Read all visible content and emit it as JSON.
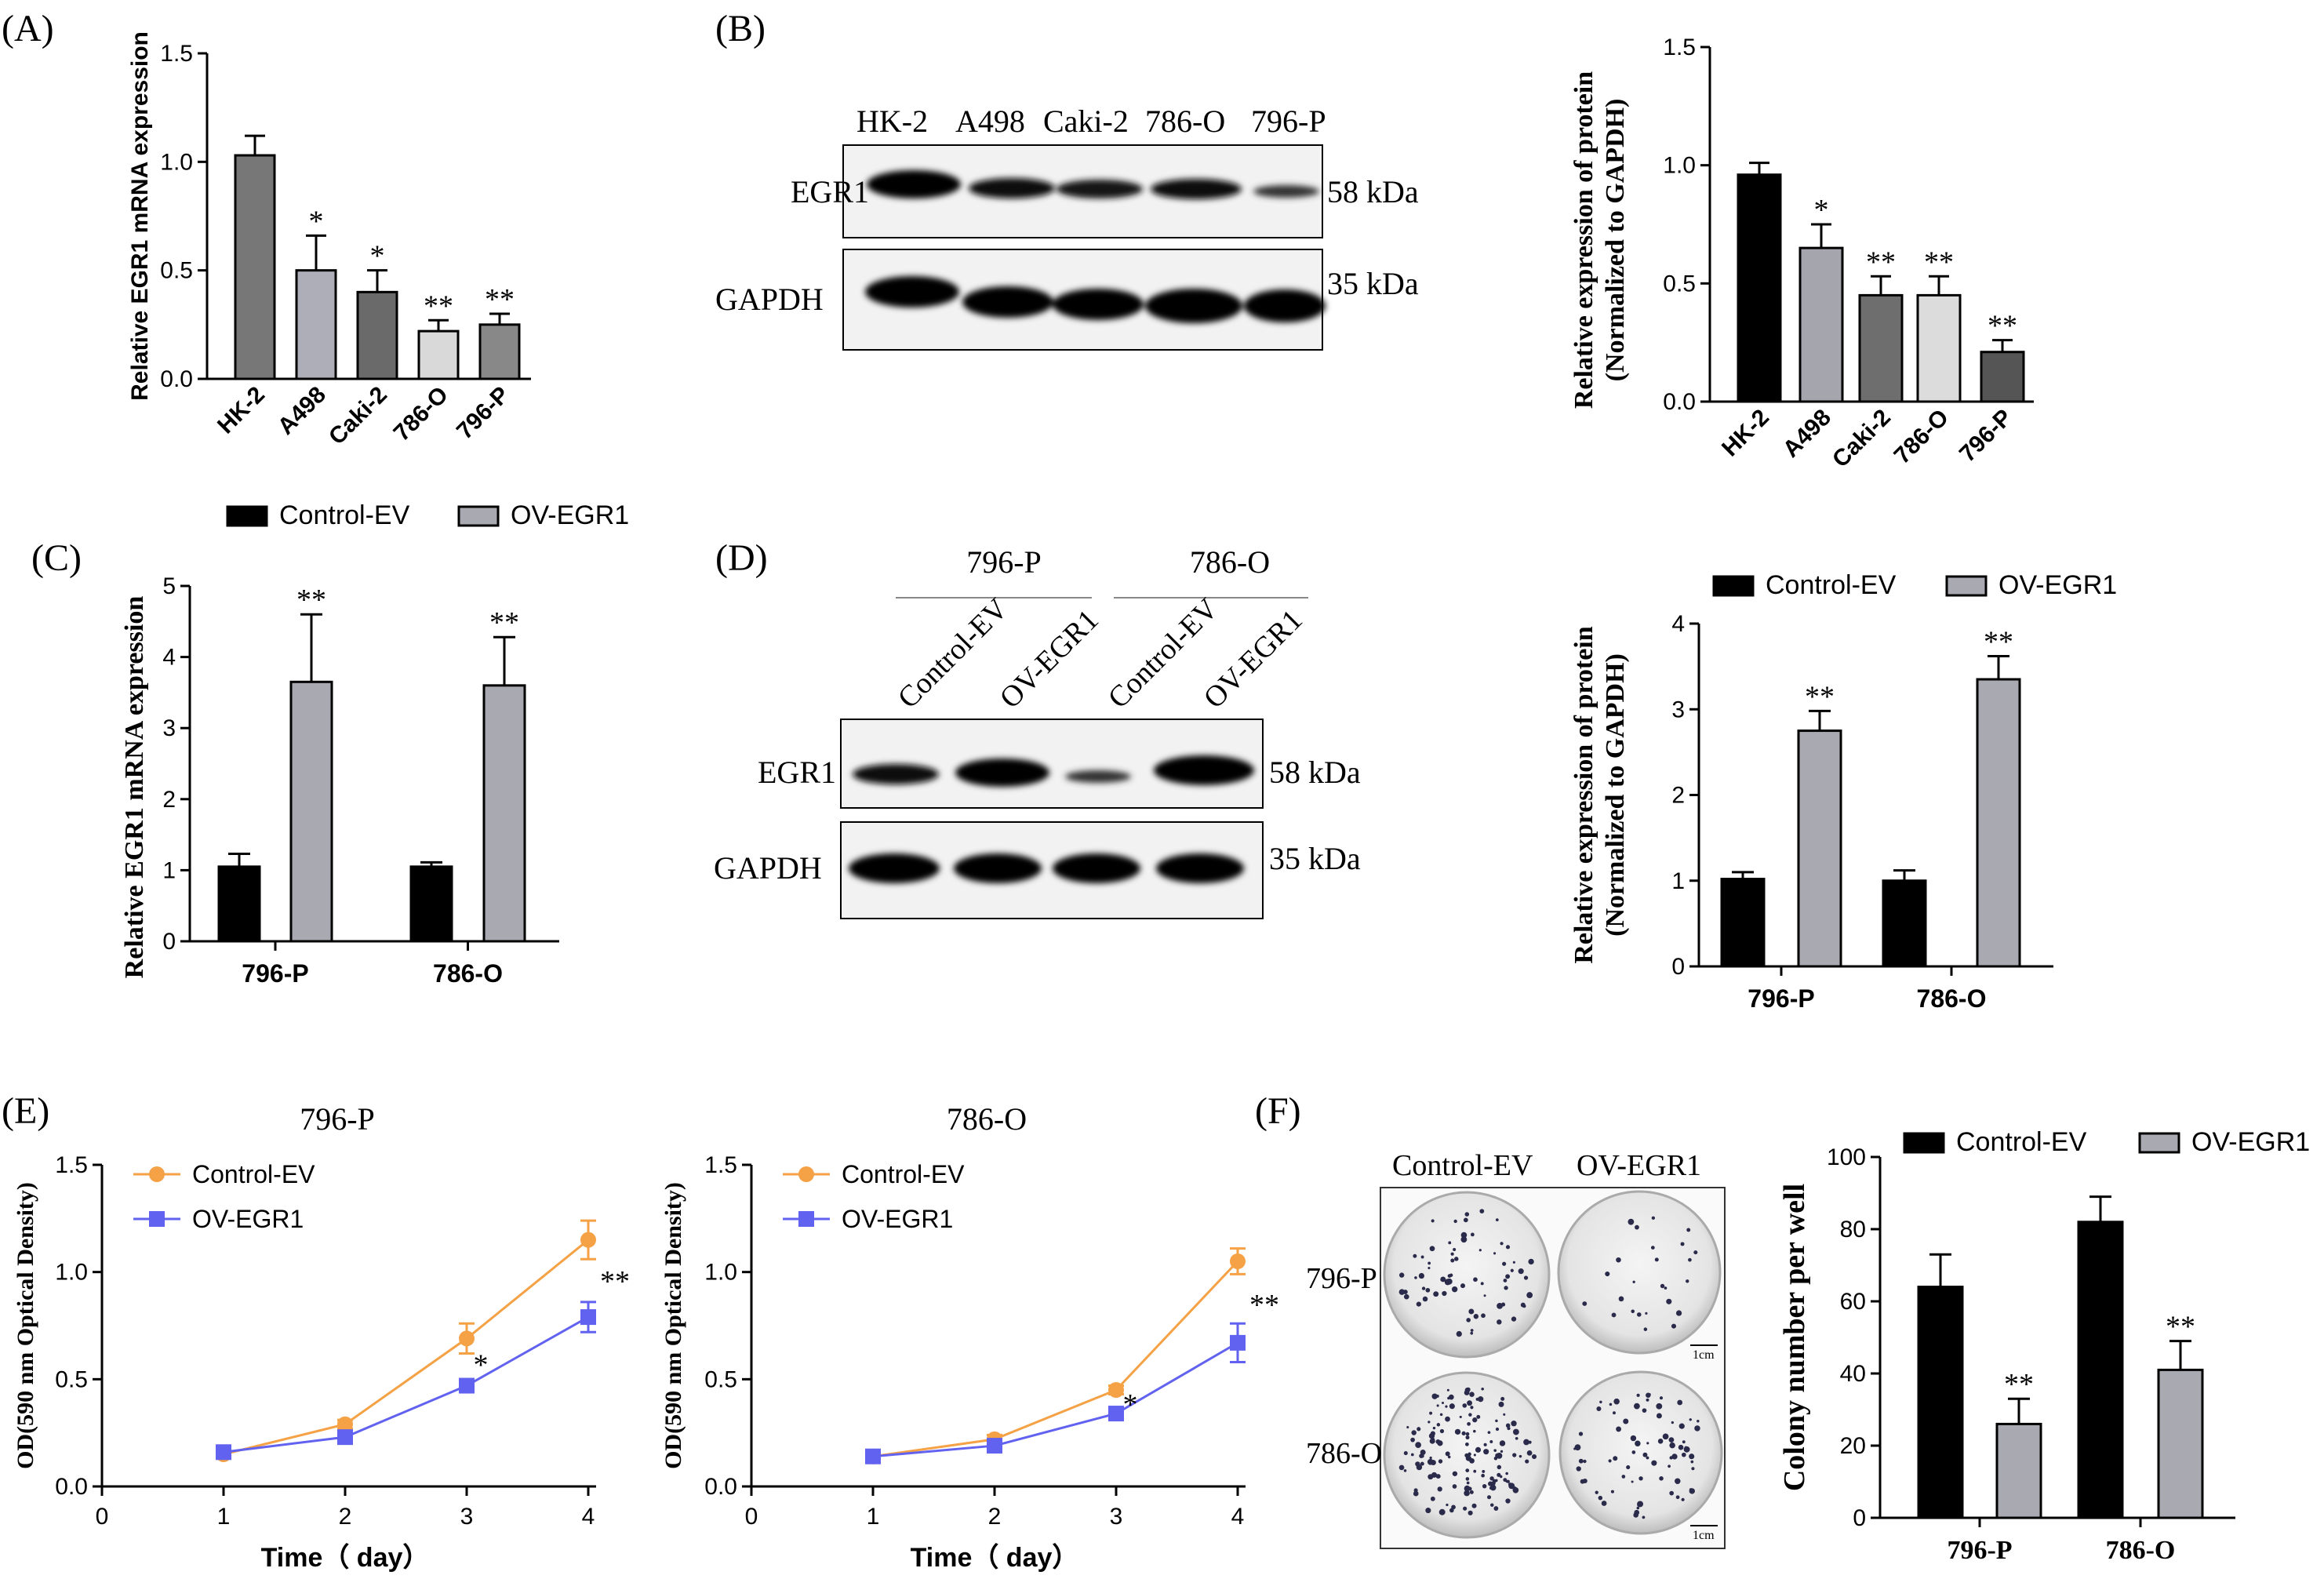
{
  "colors": {
    "black": "#000000",
    "grey": "#a9a9b2",
    "orange": "#f5a145",
    "blue": "#6262f0",
    "darkgrey": "#777777"
  },
  "panels": {
    "A": {
      "label": "(A)"
    },
    "B": {
      "label": "(B)",
      "blot_lanes": [
        "HK-2",
        "A498",
        "Caki-2",
        "786-O",
        "796-P"
      ],
      "rows": [
        "EGR1",
        "GAPDH"
      ],
      "kda": [
        "58 kDa",
        "35 kDa"
      ]
    },
    "C": {
      "label": "(C)"
    },
    "D": {
      "label": "(D)",
      "groups": [
        "796-P",
        "786-O"
      ],
      "lanes": [
        "Control-EV",
        "OV-EGR1",
        "Control-EV",
        "OV-EGR1"
      ],
      "rows": [
        "EGR1",
        "GAPDH"
      ],
      "kda": [
        "58 kDa",
        "35 kDa"
      ]
    },
    "E": {
      "label": "(E)"
    },
    "F": {
      "label": "(F)",
      "cols": [
        "Control-EV",
        "OV-EGR1"
      ],
      "rows": [
        "796-P",
        "786-O"
      ],
      "scale": [
        "1cm",
        "1cm"
      ]
    }
  },
  "chart_data": [
    {
      "id": "A",
      "type": "bar",
      "ylabel": "Relative EGR1 mRNA expression",
      "categories": [
        "HK-2",
        "A498",
        "Caki-2",
        "786-O",
        "796-P"
      ],
      "values": [
        1.03,
        0.5,
        0.4,
        0.22,
        0.25
      ],
      "errors": [
        0.09,
        0.16,
        0.1,
        0.05,
        0.05
      ],
      "sig": [
        "",
        "*",
        "*",
        "**",
        "**"
      ],
      "ylim": [
        0,
        1.5
      ],
      "ticks": [
        "0.0",
        "0.5",
        "1.0",
        "1.5"
      ],
      "tickvals": [
        0,
        0.5,
        1.0,
        1.5
      ],
      "colors": [
        "#777777",
        "#aeaeb8",
        "#6a6a6a",
        "#d9d9d9",
        "#888888"
      ]
    },
    {
      "id": "B",
      "type": "bar",
      "ylabel": "Relative expression of protein",
      "ylabel2": "(Normalized to GAPDH)",
      "categories": [
        "HK-2",
        "A498",
        "Caki-2",
        "786-O",
        "796-P"
      ],
      "values": [
        0.96,
        0.65,
        0.45,
        0.45,
        0.21
      ],
      "errors": [
        0.05,
        0.1,
        0.08,
        0.08,
        0.05
      ],
      "sig": [
        "",
        "*",
        "**",
        "**",
        "**"
      ],
      "ylim": [
        0,
        1.5
      ],
      "ticks": [
        "0.0",
        "0.5",
        "1.0",
        "1.5"
      ],
      "tickvals": [
        0,
        0.5,
        1.0,
        1.5
      ],
      "colors": [
        "#000000",
        "#a5a5ae",
        "#6e6e6e",
        "#dcdcdc",
        "#555555"
      ]
    },
    {
      "id": "C",
      "type": "bar",
      "ylabel": "Relative EGR1 mRNA expression",
      "categories": [
        "796-P",
        "786-O"
      ],
      "series": [
        {
          "name": "Control-EV",
          "values": [
            1.05,
            1.05
          ],
          "errors": [
            0.18,
            0.06
          ],
          "sig": [
            "",
            ""
          ]
        },
        {
          "name": "OV-EGR1",
          "values": [
            3.65,
            3.6
          ],
          "errors": [
            0.95,
            0.68
          ],
          "sig": [
            "**",
            "**"
          ]
        }
      ],
      "ylim": [
        0,
        5
      ],
      "ticks": [
        "0",
        "1",
        "2",
        "3",
        "4",
        "5"
      ],
      "tickvals": [
        0,
        1,
        2,
        3,
        4,
        5
      ]
    },
    {
      "id": "D",
      "type": "bar",
      "ylabel": "Relative expression of protein",
      "ylabel2": "(Normalized to GAPDH)",
      "categories": [
        "796-P",
        "786-O"
      ],
      "series": [
        {
          "name": "Control-EV",
          "values": [
            1.02,
            1.0
          ],
          "errors": [
            0.08,
            0.12
          ],
          "sig": [
            "",
            ""
          ]
        },
        {
          "name": "OV-EGR1",
          "values": [
            2.75,
            3.35
          ],
          "errors": [
            0.23,
            0.27
          ],
          "sig": [
            "**",
            "**"
          ]
        }
      ],
      "ylim": [
        0,
        4
      ],
      "ticks": [
        "0",
        "1",
        "2",
        "3",
        "4"
      ],
      "tickvals": [
        0,
        1,
        2,
        3,
        4
      ]
    },
    {
      "id": "E1",
      "type": "line",
      "title": "796-P",
      "xlabel": "Time（ day）",
      "ylabel": "OD(590 nm Optical Density)",
      "x": [
        1,
        2,
        3,
        4
      ],
      "series": [
        {
          "name": "Control-EV",
          "values": [
            0.15,
            0.29,
            0.69,
            1.15
          ],
          "errors": [
            0.02,
            0.02,
            0.07,
            0.09
          ]
        },
        {
          "name": "OV-EGR1",
          "values": [
            0.16,
            0.23,
            0.47,
            0.79
          ],
          "errors": [
            0.02,
            0.02,
            0.02,
            0.07
          ]
        }
      ],
      "sig": [
        "",
        "",
        "*",
        "**"
      ],
      "xlim": [
        0,
        4
      ],
      "ylim": [
        0,
        1.5
      ],
      "xticks": [
        "0",
        "1",
        "2",
        "3",
        "4"
      ],
      "yticks": [
        "0.0",
        "0.5",
        "1.0",
        "1.5"
      ],
      "ytickvals": [
        0,
        0.5,
        1.0,
        1.5
      ]
    },
    {
      "id": "E2",
      "type": "line",
      "title": "786-O",
      "xlabel": "Time（ day）",
      "ylabel": "OD(590 nm Optical Density)",
      "x": [
        1,
        2,
        3,
        4
      ],
      "series": [
        {
          "name": "Control-EV",
          "values": [
            0.14,
            0.22,
            0.45,
            1.05
          ],
          "errors": [
            0.02,
            0.02,
            0.02,
            0.06
          ]
        },
        {
          "name": "OV-EGR1",
          "values": [
            0.14,
            0.19,
            0.34,
            0.67
          ],
          "errors": [
            0.02,
            0.02,
            0.02,
            0.09
          ]
        }
      ],
      "sig": [
        "",
        "",
        "*",
        "**"
      ],
      "xlim": [
        0,
        4
      ],
      "ylim": [
        0,
        1.5
      ],
      "xticks": [
        "0",
        "1",
        "2",
        "3",
        "4"
      ],
      "yticks": [
        "0.0",
        "0.5",
        "1.0",
        "1.5"
      ],
      "ytickvals": [
        0,
        0.5,
        1.0,
        1.5
      ]
    },
    {
      "id": "F",
      "type": "bar",
      "ylabel": "Colony number per well",
      "categories": [
        "796-P",
        "786-O"
      ],
      "series": [
        {
          "name": "Control-EV",
          "values": [
            64,
            82
          ],
          "errors": [
            9,
            7
          ],
          "sig": [
            "",
            ""
          ]
        },
        {
          "name": "OV-EGR1",
          "values": [
            26,
            41
          ],
          "errors": [
            7,
            8
          ],
          "sig": [
            "**",
            "**"
          ]
        }
      ],
      "ylim": [
        0,
        100
      ],
      "ticks": [
        "0",
        "20",
        "40",
        "60",
        "80",
        "100"
      ],
      "tickvals": [
        0,
        20,
        40,
        60,
        80,
        100
      ]
    }
  ]
}
